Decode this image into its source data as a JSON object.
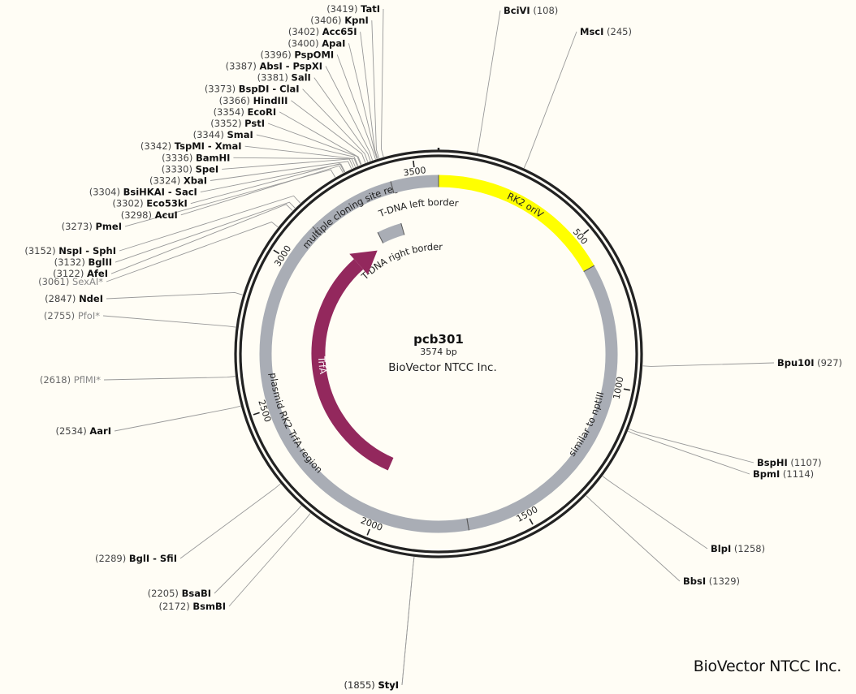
{
  "plasmid": {
    "name": "pcb301",
    "length_label": "3574 bp",
    "length": 3574,
    "organization": "BioVector NTCC Inc."
  },
  "footer": "BioVector NTCC Inc.",
  "ticks": [
    {
      "bp": 500,
      "label": "500"
    },
    {
      "bp": 1000,
      "label": "1000"
    },
    {
      "bp": 1500,
      "label": "1500"
    },
    {
      "bp": 2000,
      "label": "2000"
    },
    {
      "bp": 2500,
      "label": "2500"
    },
    {
      "bp": 3000,
      "label": "3000"
    },
    {
      "bp": 3500,
      "label": "3500"
    }
  ],
  "features": [
    {
      "id": "rk2-oriv",
      "label": "RK2 oriV",
      "start": 0,
      "end": 600,
      "color": "#ffff00",
      "track": "outer"
    },
    {
      "id": "similar-to-nptiii",
      "label": "similar to nptIII",
      "start": 600,
      "end": 1690,
      "color": "#a9adb5",
      "track": "outer"
    },
    {
      "id": "plasmid-rk2-trfa-region",
      "label": "plasmid RK2 TrfA region",
      "start": 1690,
      "end": 3160,
      "color": "#a9adb5",
      "track": "outer"
    },
    {
      "id": "multiple-cloning-site-region",
      "label": "multiple cloning site region",
      "start": 3130,
      "end": 3420,
      "color": "#a9adb5",
      "track": "outer"
    },
    {
      "id": "t-dna-left-border",
      "label": "T-DNA left border",
      "start": 3420,
      "end": 3574,
      "color": "#a9adb5",
      "track": "outer"
    },
    {
      "id": "t-dna-right-border",
      "label": "T-DNA right border",
      "start": 3310,
      "end": 3415,
      "color": "#a9adb5",
      "track": "inner"
    },
    {
      "id": "trfa",
      "label": "TrfA",
      "start": 2020,
      "end": 3230,
      "color": "#93285d",
      "track": "trfa"
    }
  ],
  "sites": [
    {
      "name": "TatI",
      "pos_label": "(3419)",
      "bp": 3419
    },
    {
      "name": "KpnI",
      "pos_label": "(3406)",
      "bp": 3406
    },
    {
      "name": "Acc65I",
      "pos_label": "(3402)",
      "bp": 3402
    },
    {
      "name": "ApaI",
      "pos_label": "(3400)",
      "bp": 3400
    },
    {
      "name": "PspOMI",
      "pos_label": "(3396)",
      "bp": 3396
    },
    {
      "name": "AbsI - PspXI",
      "pos_label": "(3387)",
      "bp": 3387
    },
    {
      "name": "SalI",
      "pos_label": "(3381)",
      "bp": 3381
    },
    {
      "name": "BspDI - ClaI",
      "pos_label": "(3373)",
      "bp": 3373
    },
    {
      "name": "HindIII",
      "pos_label": "(3366)",
      "bp": 3366
    },
    {
      "name": "EcoRI",
      "pos_label": "(3354)",
      "bp": 3354
    },
    {
      "name": "PstI",
      "pos_label": "(3352)",
      "bp": 3352
    },
    {
      "name": "SmaI",
      "pos_label": "(3344)",
      "bp": 3344
    },
    {
      "name": "TspMI - XmaI",
      "pos_label": "(3342)",
      "bp": 3342
    },
    {
      "name": "BamHI",
      "pos_label": "(3336)",
      "bp": 3336
    },
    {
      "name": "SpeI",
      "pos_label": "(3330)",
      "bp": 3330
    },
    {
      "name": "XbaI",
      "pos_label": "(3324)",
      "bp": 3324
    },
    {
      "name": "BsiHKAI - SacI",
      "pos_label": "(3304)",
      "bp": 3304
    },
    {
      "name": "Eco53kI",
      "pos_label": "(3302)",
      "bp": 3302
    },
    {
      "name": "AcuI",
      "pos_label": "(3298)",
      "bp": 3298
    },
    {
      "name": "PmeI",
      "pos_label": "(3273)",
      "bp": 3273
    },
    {
      "name": "NspI - SphI",
      "pos_label": "(3152)",
      "bp": 3152
    },
    {
      "name": "BglII",
      "pos_label": "(3132)",
      "bp": 3132
    },
    {
      "name": "AfeI",
      "pos_label": "(3122)",
      "bp": 3122
    },
    {
      "name": "SexAI*",
      "pos_label": "(3061)",
      "bp": 3061,
      "gray": true
    },
    {
      "name": "NdeI",
      "pos_label": "(2847)",
      "bp": 2847
    },
    {
      "name": "PfoI*",
      "pos_label": "(2755)",
      "bp": 2755,
      "gray": true
    },
    {
      "name": "PflMI*",
      "pos_label": "(2618)",
      "bp": 2618,
      "gray": true
    },
    {
      "name": "AarI",
      "pos_label": "(2534)",
      "bp": 2534
    },
    {
      "name": "BglI - SfiI",
      "pos_label": "(2289)",
      "bp": 2289
    },
    {
      "name": "BsaBI",
      "pos_label": "(2205)",
      "bp": 2205
    },
    {
      "name": "BsmBI",
      "pos_label": "(2172)",
      "bp": 2172
    },
    {
      "name": "StyI",
      "pos_label": "(1855)",
      "bp": 1855
    },
    {
      "name": "BciVI",
      "pos_label": "(108)",
      "bp": 108
    },
    {
      "name": "MscI",
      "pos_label": "(245)",
      "bp": 245
    },
    {
      "name": "Bpu10I",
      "pos_label": "(927)",
      "bp": 927
    },
    {
      "name": "BspHI",
      "pos_label": "(1107)",
      "bp": 1107
    },
    {
      "name": "BpmI",
      "pos_label": "(1114)",
      "bp": 1114
    },
    {
      "name": "BlpI",
      "pos_label": "(1258)",
      "bp": 1258
    },
    {
      "name": "BbsI",
      "pos_label": "(1329)",
      "bp": 1329
    }
  ]
}
